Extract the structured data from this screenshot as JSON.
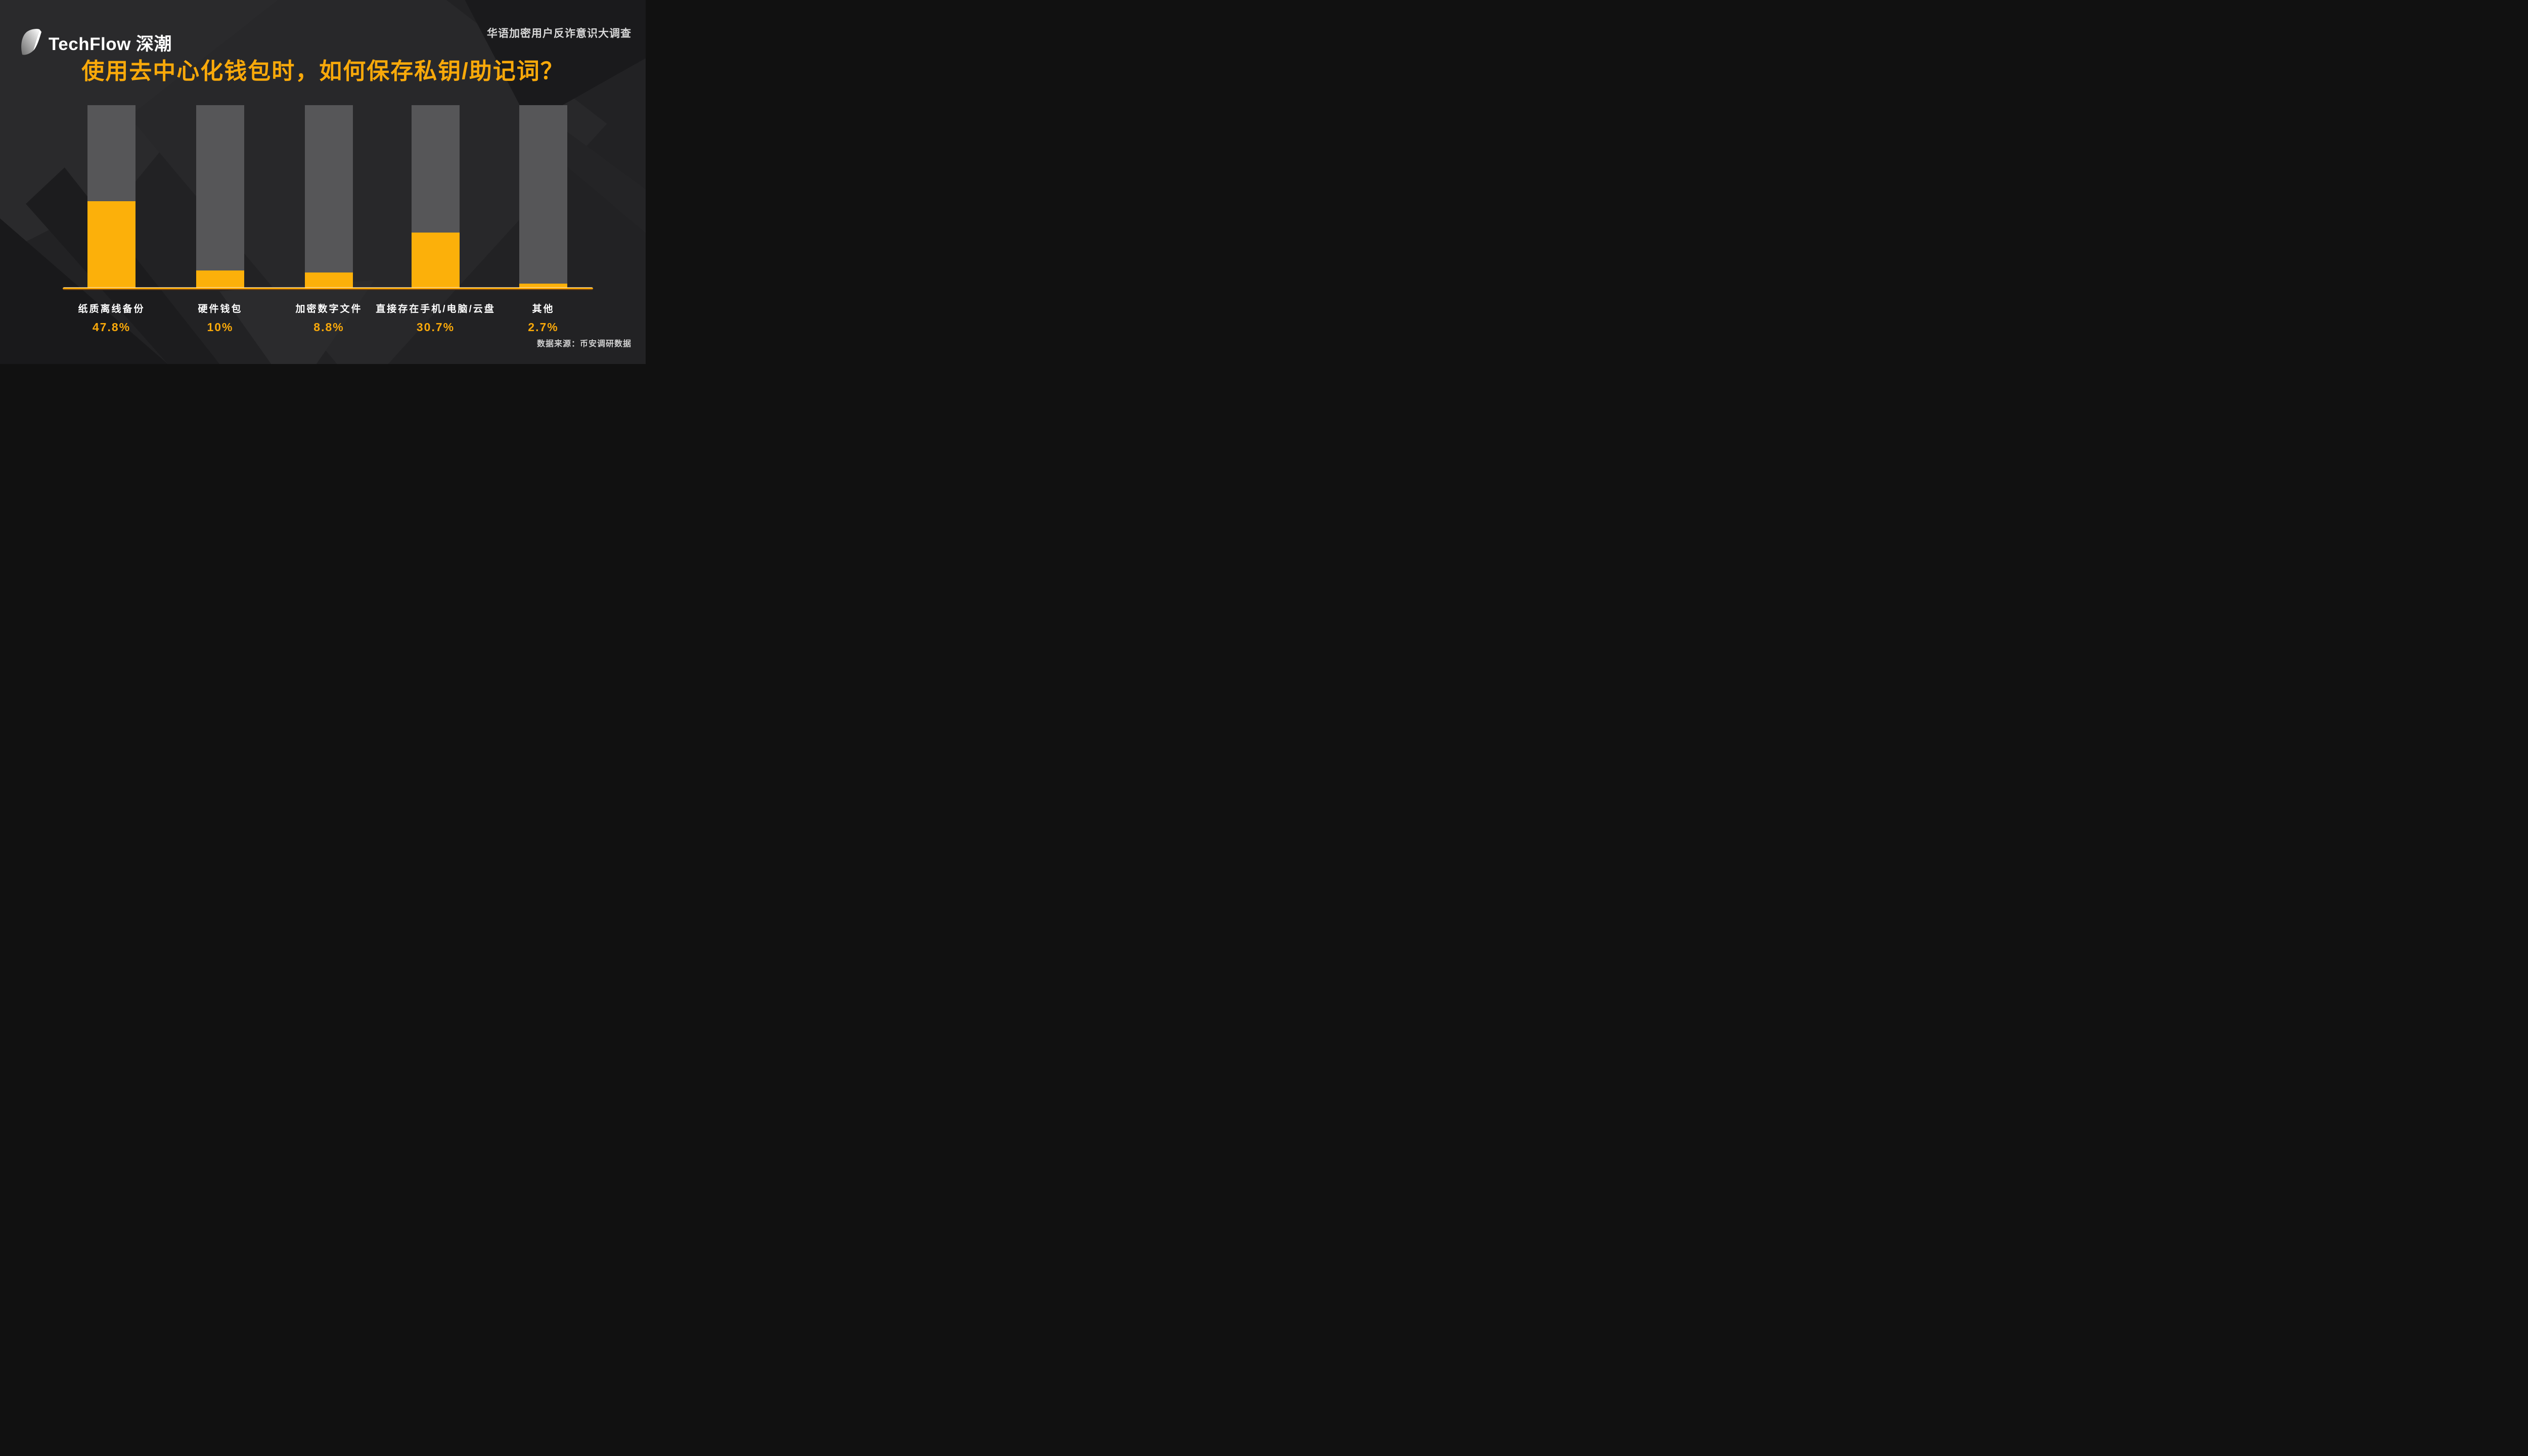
{
  "brand": {
    "logo_text": "TechFlow 深潮",
    "logo_icon": "techflow-leaf-logo"
  },
  "header": {
    "survey_name": "华语加密用户反诈意识大调查"
  },
  "chart_data": {
    "type": "bar",
    "title": "使用去中心化钱包时，如何保存私钥/助记词？",
    "categories": [
      "纸质离线备份",
      "硬件钱包",
      "加密数字文件",
      "直接存在手机/电脑/云盘",
      "其他"
    ],
    "values": [
      47.8,
      10,
      8.8,
      30.7,
      2.7
    ],
    "value_labels": [
      "47.8%",
      "10%",
      "8.8%",
      "30.7%",
      "2.7%"
    ],
    "ylim": [
      0,
      100
    ],
    "grid": false,
    "legend": false,
    "bar_style": "gray full-height track representing 100%, yellow fill from baseline"
  },
  "footer": {
    "data_source": "数据来源：币安调研数据"
  },
  "colors": {
    "accent_yellow": "#F9A90A",
    "bar_fill_yellow": "#FCB00A",
    "baseline_yellow": "#FFA702",
    "bar_track_gray": "#565658",
    "background_dark": "#222224",
    "header_text": "#D8D8D8",
    "footer_text": "#CFCFCF",
    "label_white": "#FFFFFF"
  }
}
